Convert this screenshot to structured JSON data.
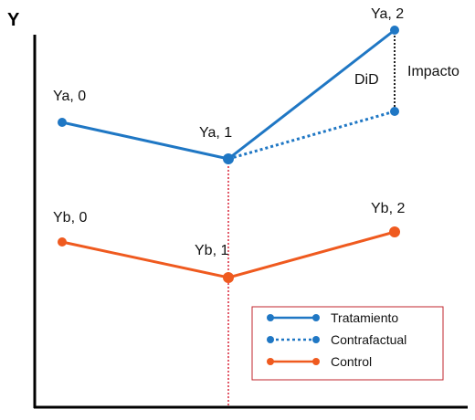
{
  "colors": {
    "treatment": "#1f77c4",
    "control": "#ef5a1f",
    "vline": "#d9263a",
    "legend_border": "#c0262c",
    "axis": "#000000",
    "did": "#222222"
  },
  "axis": {
    "y_label": "Y"
  },
  "points": {
    "ya0": "Ya, 0",
    "ya1": "Ya, 1",
    "ya2": "Ya, 2",
    "yb0": "Yb, 0",
    "yb1": "Yb, 1",
    "yb2": "Yb, 2"
  },
  "annotations": {
    "did": "DiD",
    "impact": "Impacto"
  },
  "legend": {
    "treatment": "Tratamiento",
    "counterfactual": "Contrafactual",
    "control": "Control"
  }
}
